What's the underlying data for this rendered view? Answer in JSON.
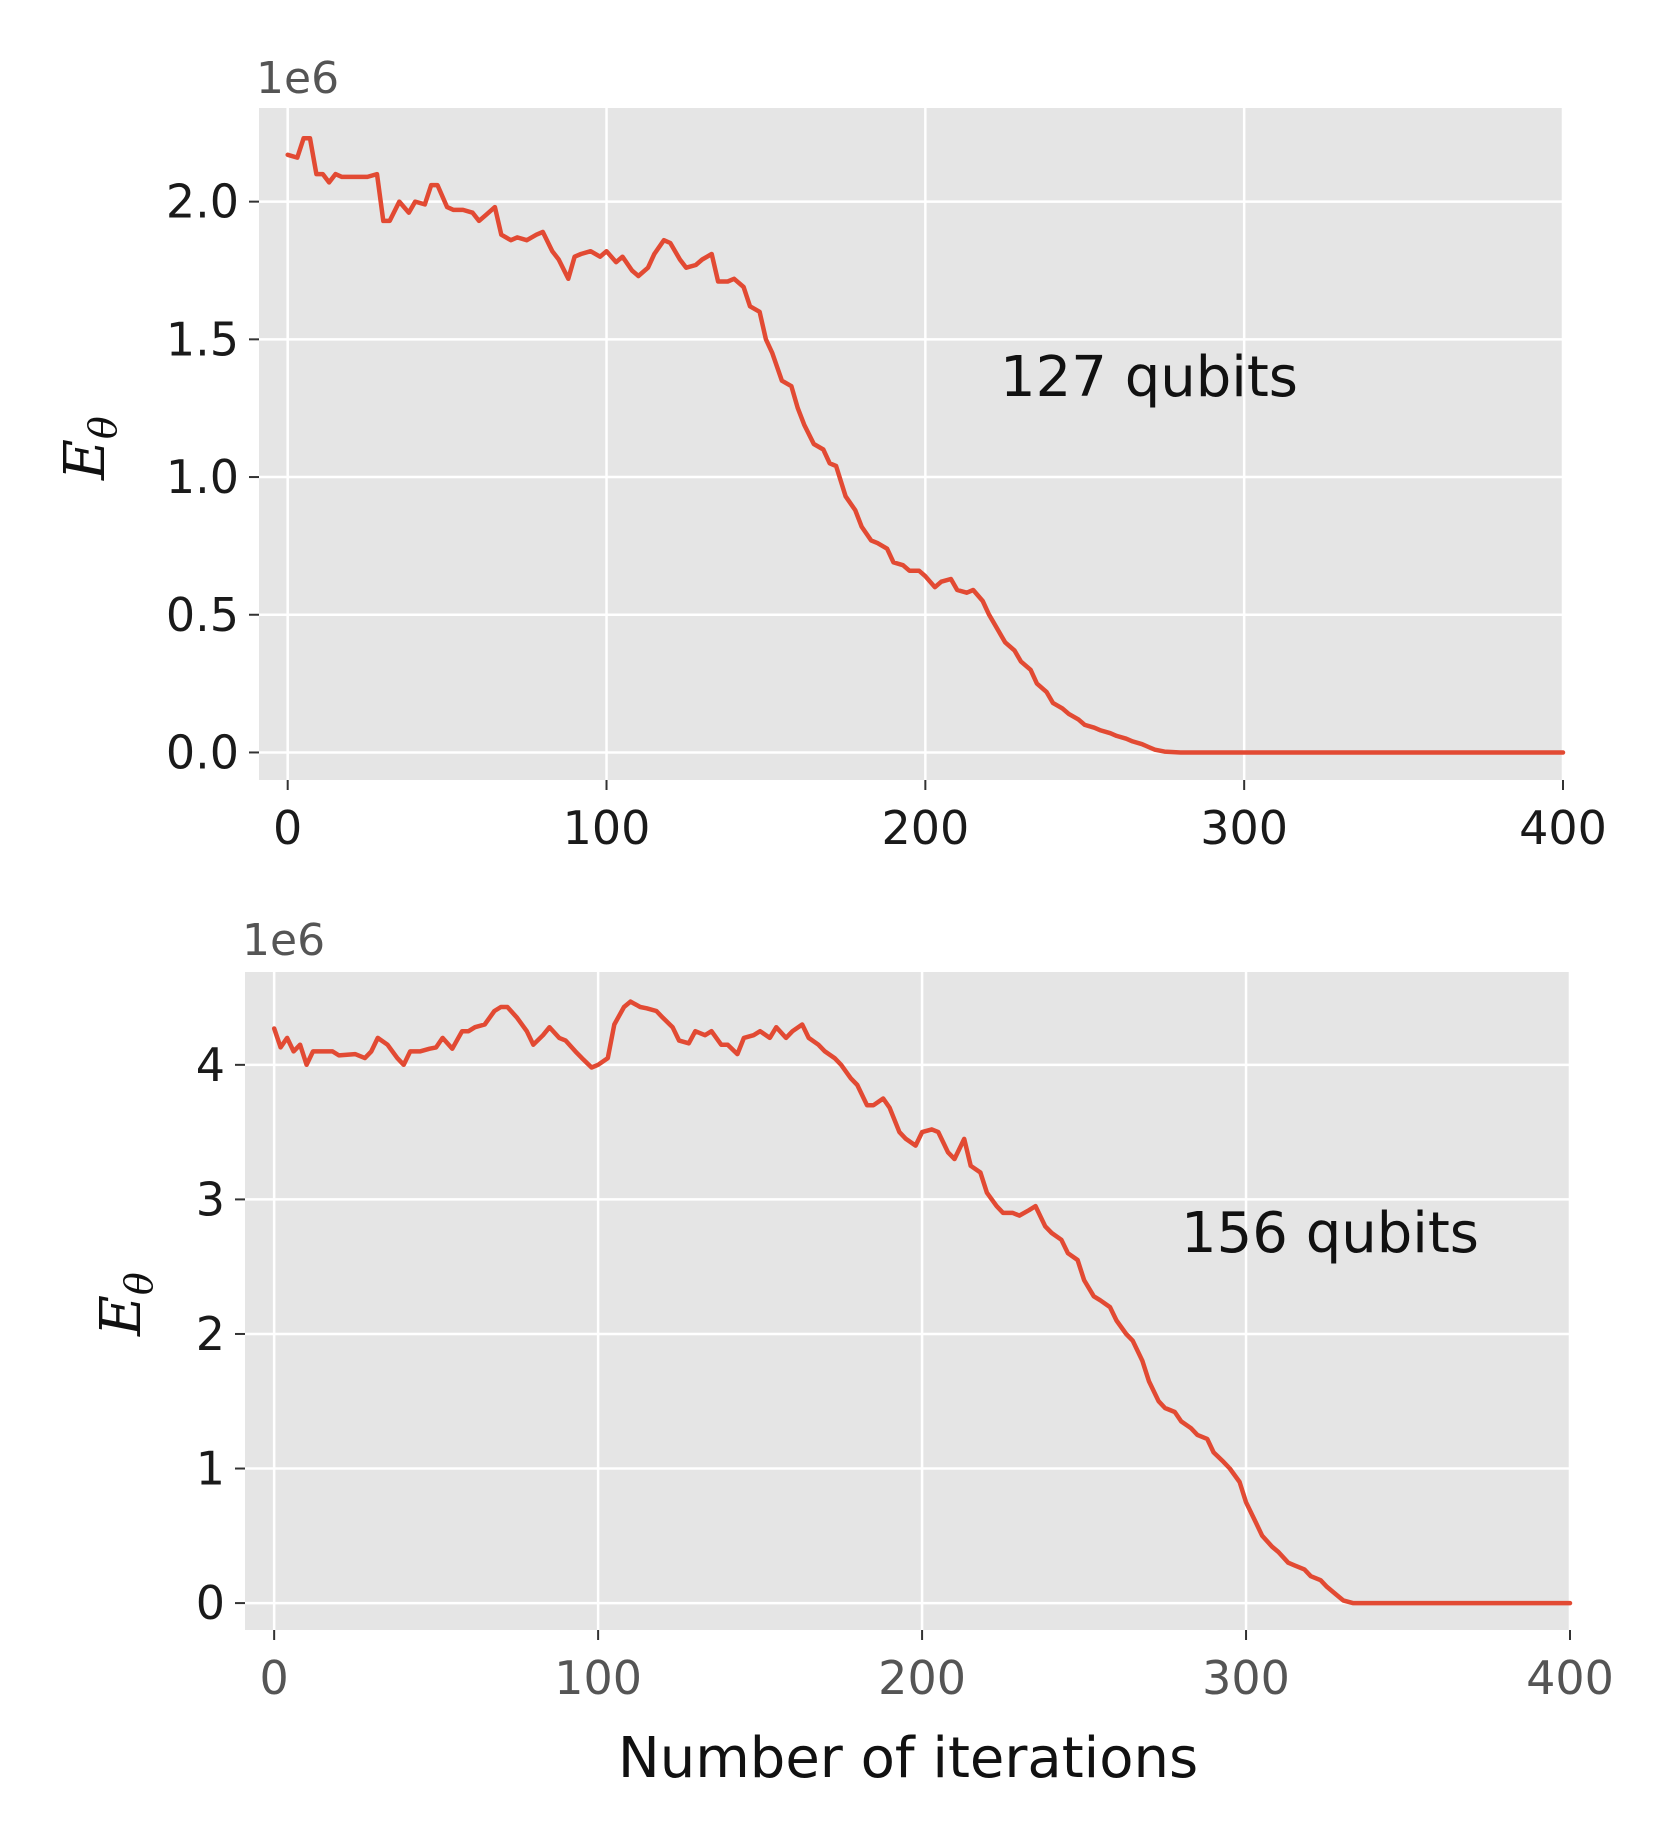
{
  "chart_data": [
    {
      "type": "line",
      "annotation": "127 qubits",
      "offset_text": "1e6",
      "xlabel": "",
      "ylabel": "E",
      "ylabel_subscript": "θ",
      "xlim": [
        -9,
        400
      ],
      "ylim": [
        -0.1,
        2.34
      ],
      "xticks": [
        0,
        100,
        200,
        300,
        400
      ],
      "xtick_labels": [
        "0",
        "100",
        "200",
        "300",
        "400"
      ],
      "yticks": [
        0.0,
        0.5,
        1.0,
        1.5,
        2.0
      ],
      "ytick_labels": [
        "0.0",
        "0.5",
        "1.0",
        "1.5",
        "2.0"
      ],
      "grid": true,
      "series": [
        {
          "color": "#e24a33",
          "x": [
            0,
            3,
            5,
            7,
            9,
            11,
            13,
            15,
            17,
            20,
            25,
            28,
            30,
            32,
            35,
            38,
            40,
            43,
            45,
            47,
            50,
            52,
            55,
            58,
            60,
            62,
            65,
            67,
            70,
            72,
            75,
            78,
            80,
            83,
            85,
            88,
            90,
            92,
            95,
            98,
            100,
            103,
            105,
            108,
            110,
            113,
            115,
            118,
            120,
            123,
            125,
            128,
            130,
            133,
            135,
            138,
            140,
            143,
            145,
            148,
            150,
            152,
            155,
            158,
            160,
            162,
            165,
            168,
            170,
            172,
            175,
            178,
            180,
            183,
            185,
            188,
            190,
            193,
            195,
            198,
            200,
            203,
            205,
            208,
            210,
            213,
            215,
            218,
            220,
            223,
            225,
            228,
            230,
            233,
            235,
            238,
            240,
            243,
            245,
            248,
            250,
            253,
            255,
            258,
            260,
            263,
            265,
            268,
            270,
            272,
            275,
            280,
            290,
            300,
            320,
            350,
            380,
            400
          ],
          "y": [
            2.17,
            2.16,
            2.23,
            2.23,
            2.1,
            2.1,
            2.07,
            2.1,
            2.09,
            2.09,
            2.09,
            2.1,
            1.93,
            1.93,
            2.0,
            1.96,
            2.0,
            1.99,
            2.06,
            2.06,
            1.98,
            1.97,
            1.97,
            1.96,
            1.93,
            1.95,
            1.98,
            1.88,
            1.86,
            1.87,
            1.86,
            1.88,
            1.89,
            1.82,
            1.79,
            1.72,
            1.8,
            1.81,
            1.82,
            1.8,
            1.82,
            1.78,
            1.8,
            1.75,
            1.73,
            1.76,
            1.81,
            1.86,
            1.85,
            1.79,
            1.76,
            1.77,
            1.79,
            1.81,
            1.71,
            1.71,
            1.72,
            1.69,
            1.62,
            1.6,
            1.5,
            1.45,
            1.35,
            1.33,
            1.25,
            1.19,
            1.12,
            1.1,
            1.05,
            1.04,
            0.93,
            0.88,
            0.82,
            0.77,
            0.76,
            0.74,
            0.69,
            0.68,
            0.66,
            0.66,
            0.64,
            0.6,
            0.62,
            0.63,
            0.59,
            0.58,
            0.59,
            0.55,
            0.5,
            0.44,
            0.4,
            0.37,
            0.33,
            0.3,
            0.25,
            0.22,
            0.18,
            0.16,
            0.14,
            0.12,
            0.1,
            0.09,
            0.08,
            0.07,
            0.06,
            0.05,
            0.04,
            0.03,
            0.02,
            0.01,
            0.003,
            0.0,
            0.0,
            0.0,
            0.0,
            0.0,
            0.0,
            0.0
          ]
        }
      ]
    },
    {
      "type": "line",
      "annotation": "156 qubits",
      "offset_text": "1e6",
      "xlabel": "Number of iterations",
      "ylabel": "E",
      "ylabel_subscript": "θ",
      "xlim": [
        -9,
        400
      ],
      "ylim": [
        -0.2,
        4.69
      ],
      "xticks": [
        0,
        100,
        200,
        300,
        400
      ],
      "xtick_labels": [
        "0",
        "100",
        "200",
        "300",
        "400"
      ],
      "yticks": [
        0,
        1,
        2,
        3,
        4
      ],
      "ytick_labels": [
        "0",
        "1",
        "2",
        "3",
        "4"
      ],
      "grid": true,
      "series": [
        {
          "color": "#e24a33",
          "x": [
            0,
            2,
            4,
            6,
            8,
            10,
            12,
            15,
            18,
            20,
            25,
            28,
            30,
            32,
            35,
            38,
            40,
            42,
            45,
            48,
            50,
            52,
            55,
            58,
            60,
            62,
            65,
            68,
            70,
            72,
            75,
            78,
            80,
            83,
            85,
            88,
            90,
            93,
            95,
            98,
            100,
            103,
            105,
            108,
            110,
            113,
            115,
            118,
            120,
            123,
            125,
            128,
            130,
            133,
            135,
            138,
            140,
            143,
            145,
            148,
            150,
            153,
            155,
            158,
            160,
            163,
            165,
            168,
            170,
            173,
            175,
            178,
            180,
            183,
            185,
            188,
            190,
            193,
            195,
            198,
            200,
            203,
            205,
            208,
            210,
            213,
            215,
            218,
            220,
            223,
            225,
            228,
            230,
            233,
            235,
            238,
            240,
            243,
            245,
            248,
            250,
            253,
            255,
            258,
            260,
            263,
            265,
            268,
            270,
            273,
            275,
            278,
            280,
            283,
            285,
            288,
            290,
            293,
            295,
            298,
            300,
            303,
            305,
            308,
            310,
            313,
            315,
            318,
            320,
            323,
            325,
            328,
            330,
            333,
            335,
            340,
            350,
            360,
            380,
            400
          ],
          "y": [
            4.27,
            4.13,
            4.2,
            4.1,
            4.15,
            4.0,
            4.1,
            4.1,
            4.1,
            4.07,
            4.08,
            4.05,
            4.1,
            4.2,
            4.15,
            4.05,
            4.0,
            4.1,
            4.1,
            4.12,
            4.13,
            4.2,
            4.12,
            4.25,
            4.25,
            4.28,
            4.3,
            4.4,
            4.43,
            4.43,
            4.35,
            4.25,
            4.15,
            4.22,
            4.28,
            4.2,
            4.18,
            4.1,
            4.05,
            3.98,
            4.0,
            4.05,
            4.3,
            4.43,
            4.47,
            4.43,
            4.42,
            4.4,
            4.35,
            4.28,
            4.18,
            4.16,
            4.25,
            4.22,
            4.25,
            4.15,
            4.15,
            4.08,
            4.2,
            4.22,
            4.25,
            4.2,
            4.28,
            4.2,
            4.25,
            4.3,
            4.2,
            4.15,
            4.1,
            4.05,
            4.0,
            3.9,
            3.85,
            3.7,
            3.7,
            3.75,
            3.68,
            3.5,
            3.45,
            3.4,
            3.5,
            3.52,
            3.5,
            3.35,
            3.3,
            3.45,
            3.25,
            3.2,
            3.05,
            2.95,
            2.9,
            2.9,
            2.88,
            2.92,
            2.95,
            2.8,
            2.75,
            2.7,
            2.6,
            2.55,
            2.4,
            2.28,
            2.25,
            2.2,
            2.1,
            2.0,
            1.95,
            1.8,
            1.65,
            1.5,
            1.45,
            1.42,
            1.35,
            1.3,
            1.25,
            1.22,
            1.12,
            1.05,
            1.0,
            0.9,
            0.75,
            0.6,
            0.5,
            0.42,
            0.38,
            0.3,
            0.28,
            0.25,
            0.2,
            0.17,
            0.12,
            0.06,
            0.02,
            0.0,
            0.0,
            0.0,
            0.0,
            0.0,
            0.0,
            0.0
          ]
        }
      ]
    }
  ]
}
